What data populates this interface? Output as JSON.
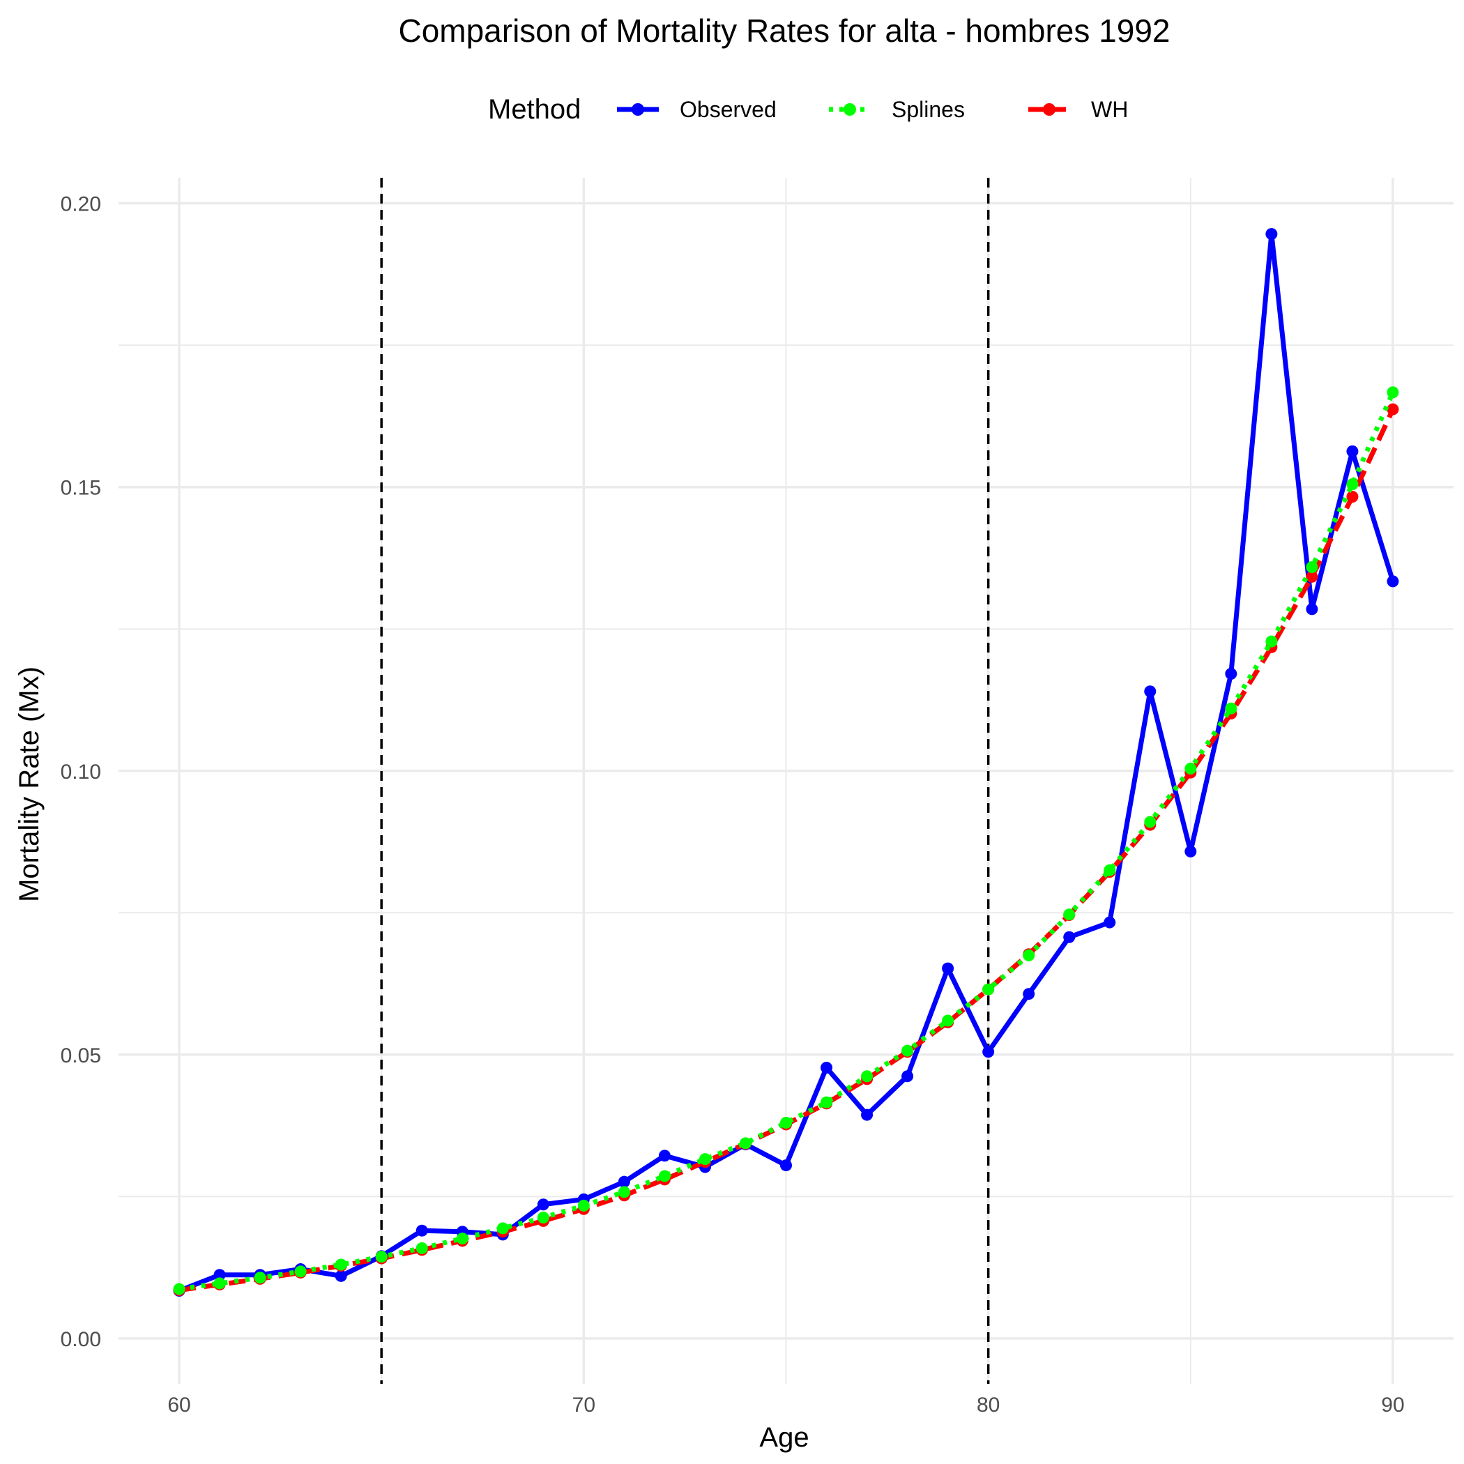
{
  "chart_data": {
    "type": "line",
    "title": "Comparison of Mortality Rates for alta - hombres 1992",
    "xlabel": "Age",
    "ylabel": "Mortality Rate (Mx)",
    "xlim": [
      58.5,
      91.5
    ],
    "ylim": [
      -0.008,
      0.2045
    ],
    "x_ticks": [
      60,
      70,
      80,
      90
    ],
    "x_tick_labels": [
      "60",
      "70",
      "80",
      "90"
    ],
    "y_ticks": [
      0.0,
      0.05,
      0.1,
      0.15,
      0.2
    ],
    "y_tick_labels": [
      "0.00",
      "0.05",
      "0.10",
      "0.15",
      "0.20"
    ],
    "grid": true,
    "legend": {
      "title": "Method",
      "position": "top",
      "entries": [
        "Observed",
        "Splines",
        "WH"
      ]
    },
    "vertical_reference_lines": [
      65,
      80
    ],
    "x": [
      60,
      61,
      62,
      63,
      64,
      65,
      66,
      67,
      68,
      69,
      70,
      71,
      72,
      73,
      74,
      75,
      76,
      77,
      78,
      79,
      80,
      81,
      82,
      83,
      84,
      85,
      86,
      87,
      88,
      89,
      90
    ],
    "series": [
      {
        "name": "Observed",
        "color": "#0000ff",
        "style": "solid",
        "values": [
          0.0084,
          0.0112,
          0.0112,
          0.0122,
          0.011,
          0.0145,
          0.019,
          0.0188,
          0.0183,
          0.0236,
          0.0245,
          0.0276,
          0.0322,
          0.0302,
          0.0342,
          0.0305,
          0.0477,
          0.0394,
          0.0462,
          0.0652,
          0.0505,
          0.0607,
          0.0707,
          0.0733,
          0.114,
          0.0858,
          0.1171,
          0.1946,
          0.1285,
          0.1563,
          0.1334
        ]
      },
      {
        "name": "Splines",
        "color": "#00ff00",
        "style": "dotted",
        "values": [
          0.0087,
          0.0097,
          0.0107,
          0.0118,
          0.013,
          0.0144,
          0.0159,
          0.0176,
          0.0194,
          0.0213,
          0.0234,
          0.0258,
          0.0286,
          0.0316,
          0.0344,
          0.038,
          0.0416,
          0.0462,
          0.0507,
          0.056,
          0.0615,
          0.0675,
          0.0747,
          0.0825,
          0.091,
          0.1004,
          0.111,
          0.1228,
          0.1359,
          0.1505,
          0.1667
        ]
      },
      {
        "name": "WH",
        "color": "#ff0000",
        "style": "dashed",
        "values": [
          0.0085,
          0.0095,
          0.0105,
          0.0116,
          0.0128,
          0.0141,
          0.0156,
          0.0172,
          0.0188,
          0.0207,
          0.0228,
          0.0252,
          0.028,
          0.0311,
          0.0343,
          0.0377,
          0.0414,
          0.0457,
          0.0505,
          0.0557,
          0.0615,
          0.0677,
          0.0746,
          0.0822,
          0.0905,
          0.0997,
          0.1101,
          0.1218,
          0.1342,
          0.1483,
          0.1637
        ]
      }
    ]
  }
}
